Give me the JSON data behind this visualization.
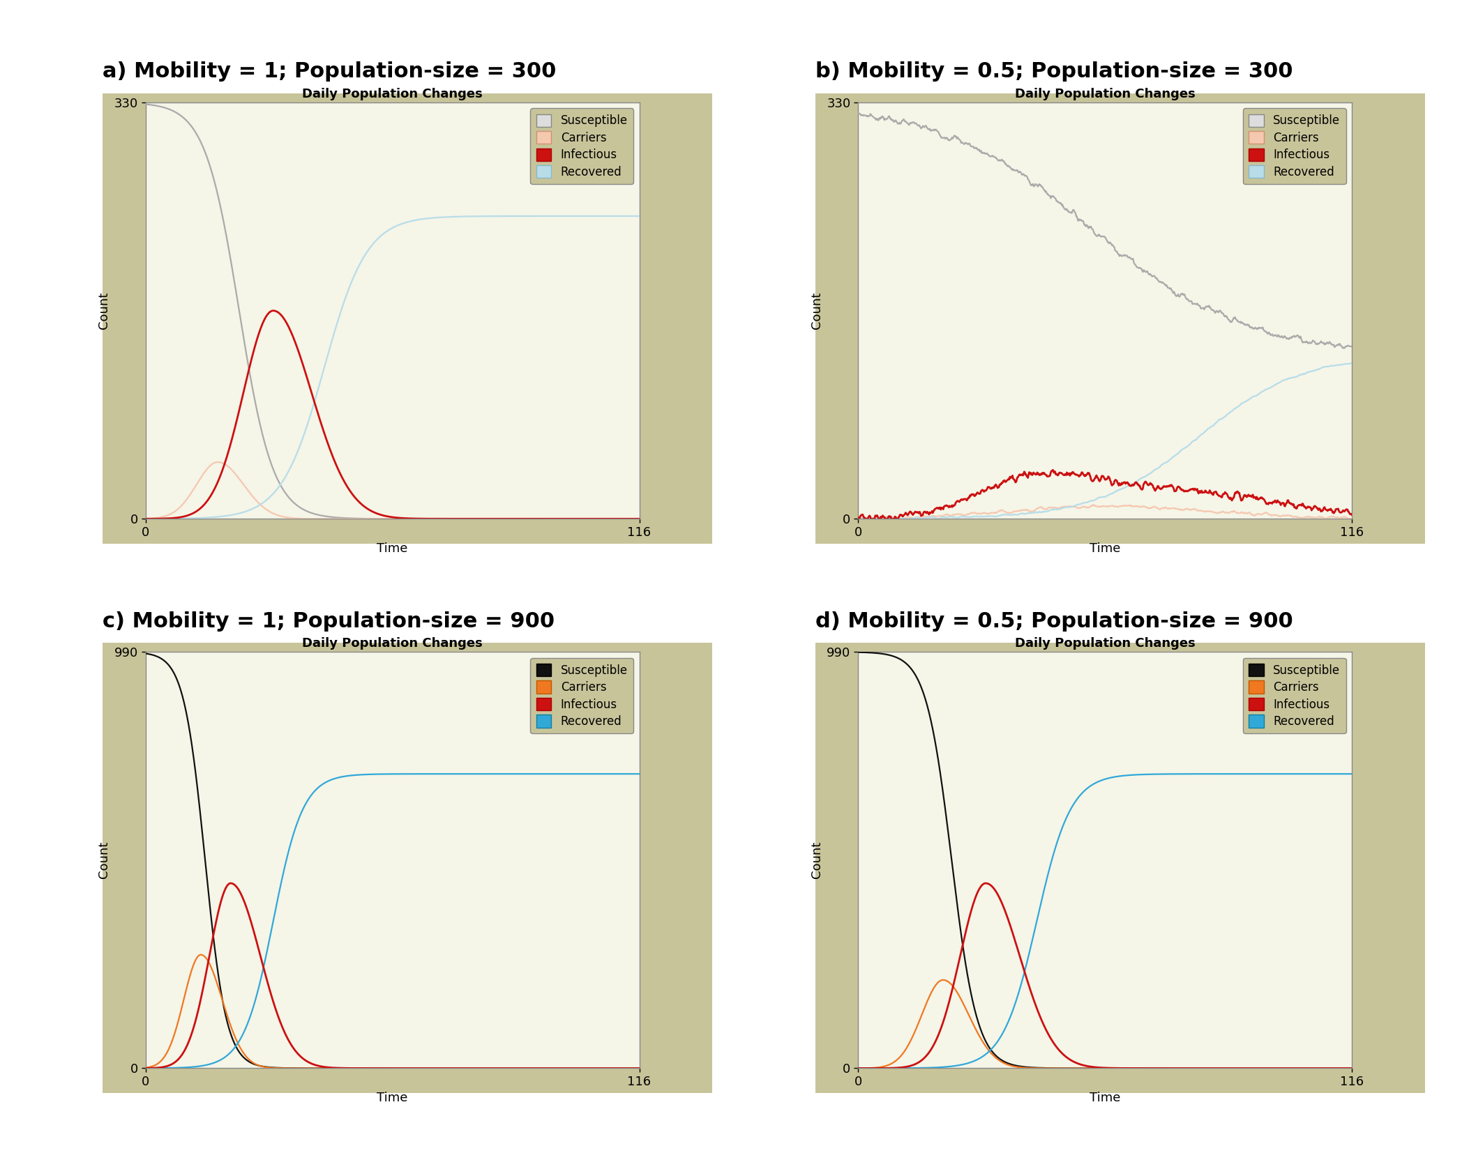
{
  "panels": [
    {
      "label": "a) Mobility = 1; Population-size = 300",
      "title": "Daily Population Changes",
      "xlim": [
        0,
        116
      ],
      "ylim": [
        0,
        330
      ],
      "yticks": [
        0,
        330
      ],
      "xticks": [
        0,
        116
      ],
      "xlabel": "Time",
      "ylabel": "Count",
      "outer_bg": "#c8c49a",
      "plot_bg": "#f5f5e8",
      "pop_size": 300,
      "mobility": 1.0,
      "legend_style": "light"
    },
    {
      "label": "b) Mobility = 0.5; Population-size = 300",
      "title": "Daily Population Changes",
      "xlim": [
        0,
        116
      ],
      "ylim": [
        0,
        330
      ],
      "yticks": [
        0,
        330
      ],
      "xticks": [
        0,
        116
      ],
      "xlabel": "Time",
      "ylabel": "Count",
      "outer_bg": "#c8c49a",
      "plot_bg": "#f5f5e8",
      "pop_size": 300,
      "mobility": 0.5,
      "legend_style": "light"
    },
    {
      "label": "c) Mobility = 1; Population-size = 900",
      "title": "Daily Population Changes",
      "xlim": [
        0,
        116
      ],
      "ylim": [
        0,
        990
      ],
      "yticks": [
        0,
        990
      ],
      "xticks": [
        0,
        116
      ],
      "xlabel": "Time",
      "ylabel": "Count",
      "outer_bg": "#c8c49a",
      "plot_bg": "#f5f5e8",
      "pop_size": 900,
      "mobility": 1.0,
      "legend_style": "dark"
    },
    {
      "label": "d) Mobility = 0.5; Population-size = 900",
      "title": "Daily Population Changes",
      "xlim": [
        0,
        116
      ],
      "ylim": [
        0,
        990
      ],
      "yticks": [
        0,
        990
      ],
      "xticks": [
        0,
        116
      ],
      "xlabel": "Time",
      "ylabel": "Count",
      "outer_bg": "#c8c49a",
      "plot_bg": "#f5f5e8",
      "pop_size": 900,
      "mobility": 0.5,
      "legend_style": "dark"
    }
  ],
  "figure_bg": "#ffffff",
  "susceptible_light": "#aaaaaa",
  "carriers_light": "#f5c8b0",
  "infectious_color": "#cc1111",
  "recovered_light": "#b8dde8",
  "susceptible_dark": "#111111",
  "carriers_dark": "#f07820",
  "recovered_dark": "#30a8d8",
  "label_fontsize": 22,
  "title_fontsize": 13,
  "tick_fontsize": 13,
  "axis_label_fontsize": 13,
  "legend_fontsize": 12
}
